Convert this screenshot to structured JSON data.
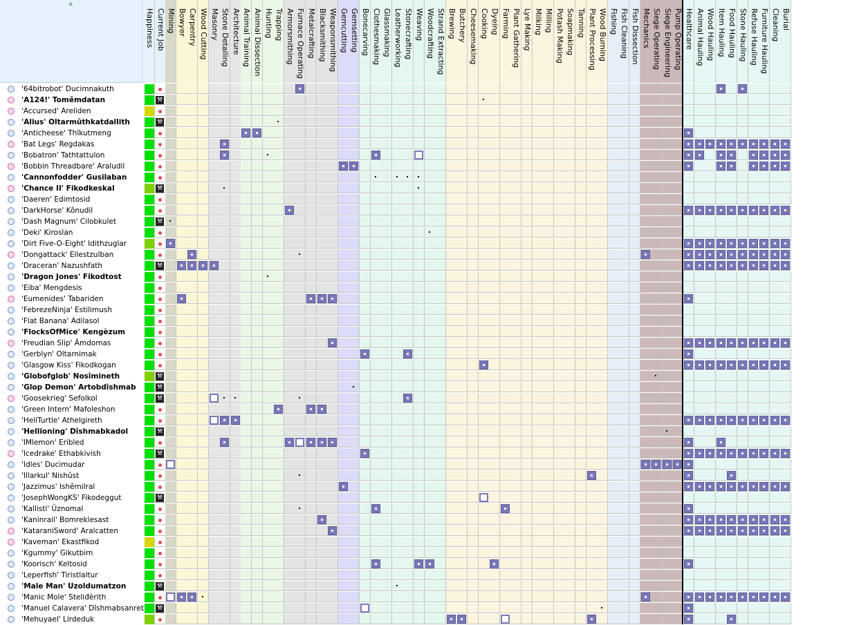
{
  "window": {
    "title": ""
  },
  "columns": [
    {
      "label": "Happiness",
      "group": "info",
      "color": "#ffffff"
    },
    {
      "label": "Current Job",
      "group": "info",
      "color": "#ffffff"
    },
    {
      "label": "Mining",
      "group": "mining",
      "color": "#d8d8c8"
    },
    {
      "label": "Bowyer",
      "group": "wood",
      "color": "#fbf6d6"
    },
    {
      "label": "Carpentry",
      "group": "wood",
      "color": "#fbf6d6"
    },
    {
      "label": "Wood Cutting",
      "group": "wood",
      "color": "#fbf6d6"
    },
    {
      "label": "Masonry",
      "group": "stone",
      "color": "#e6e6e6"
    },
    {
      "label": "Stone Detailing",
      "group": "stone",
      "color": "#e6e6e6"
    },
    {
      "label": "Architecture",
      "group": "stone",
      "color": "#e6e6e6"
    },
    {
      "label": "Animal Training",
      "group": "hunt",
      "color": "#eaf7e6"
    },
    {
      "label": "Animal Dissection",
      "group": "hunt",
      "color": "#eaf7e6"
    },
    {
      "label": "Hunting",
      "group": "hunt",
      "color": "#eaf7e6"
    },
    {
      "label": "Trapping",
      "group": "hunt",
      "color": "#eaf7e6"
    },
    {
      "label": "Armorsmithing",
      "group": "metal",
      "color": "#e4e4e4"
    },
    {
      "label": "Furnace Operating",
      "group": "metal",
      "color": "#e4e4e4"
    },
    {
      "label": "Metalcrafting",
      "group": "metal",
      "color": "#e4e4e4"
    },
    {
      "label": "Blacksmithing",
      "group": "metal",
      "color": "#e4e4e4"
    },
    {
      "label": "Weaponsmithing",
      "group": "metal",
      "color": "#e4e4e4"
    },
    {
      "label": "Gemcutting",
      "group": "gem",
      "color": "#dcdcf8"
    },
    {
      "label": "Gemsetting",
      "group": "gem",
      "color": "#dcdcf8"
    },
    {
      "label": "Bonecarving",
      "group": "craft",
      "color": "#e4f7ef"
    },
    {
      "label": "Clothesmaking",
      "group": "craft",
      "color": "#e4f7ef"
    },
    {
      "label": "Glassmaking",
      "group": "craft",
      "color": "#e4f7ef"
    },
    {
      "label": "Leatherworking",
      "group": "craft",
      "color": "#e4f7ef"
    },
    {
      "label": "Stonecrafting",
      "group": "craft",
      "color": "#e4f7ef"
    },
    {
      "label": "Weaving",
      "group": "craft",
      "color": "#e4f7ef"
    },
    {
      "label": "Woodcrafting",
      "group": "craft",
      "color": "#e4f7ef"
    },
    {
      "label": "Strand Extracting",
      "group": "craft",
      "color": "#e4f7ef"
    },
    {
      "label": "Brewing",
      "group": "farm",
      "color": "#fbf4de"
    },
    {
      "label": "Butchery",
      "group": "farm",
      "color": "#fbf4de"
    },
    {
      "label": "Cheesemaking",
      "group": "farm",
      "color": "#fbf4de"
    },
    {
      "label": "Cooking",
      "group": "farm",
      "color": "#fbf4de"
    },
    {
      "label": "Dyeing",
      "group": "farm",
      "color": "#fbf4de"
    },
    {
      "label": "Farming",
      "group": "farm",
      "color": "#fbf4de"
    },
    {
      "label": "Plant Gathering",
      "group": "farm",
      "color": "#fbf4de"
    },
    {
      "label": "Lye Making",
      "group": "farm",
      "color": "#fbf4de"
    },
    {
      "label": "Milking",
      "group": "farm",
      "color": "#fbf4de"
    },
    {
      "label": "Milling",
      "group": "farm",
      "color": "#fbf4de"
    },
    {
      "label": "Potash Making",
      "group": "farm",
      "color": "#fbf4de"
    },
    {
      "label": "Soapmaking",
      "group": "farm",
      "color": "#fbf4de"
    },
    {
      "label": "Tanning",
      "group": "farm",
      "color": "#fbf4de"
    },
    {
      "label": "Plant Processing",
      "group": "farm",
      "color": "#fbf4de"
    },
    {
      "label": "Wood Burning",
      "group": "farm",
      "color": "#fbf4de"
    },
    {
      "label": "Fishing",
      "group": "fish",
      "color": "#e6eef8"
    },
    {
      "label": "Fish Cleaning",
      "group": "fish",
      "color": "#e6eef8"
    },
    {
      "label": "Fish Dissection",
      "group": "fish",
      "color": "#e6eef8"
    },
    {
      "label": "Mechanics",
      "group": "eng",
      "color": "#cbb9b9"
    },
    {
      "label": "Siege Operating",
      "group": "eng",
      "color": "#cbb9b9"
    },
    {
      "label": "Siege Engineering",
      "group": "eng",
      "color": "#cbb9b9"
    },
    {
      "label": "Pump Operating",
      "group": "eng",
      "color": "#cbb9b9"
    },
    {
      "label": "Healthcare",
      "group": "haul",
      "color": "#e4f7f4"
    },
    {
      "label": "Animal Hauling",
      "group": "haul",
      "color": "#e4f7f4"
    },
    {
      "label": "Wood Hauling",
      "group": "haul",
      "color": "#e4f7f4"
    },
    {
      "label": "Item Hauling",
      "group": "haul",
      "color": "#e4f7f4"
    },
    {
      "label": "Food Hauling",
      "group": "haul",
      "color": "#e4f7f4"
    },
    {
      "label": "Stone Hauling",
      "group": "haul",
      "color": "#e4f7f4"
    },
    {
      "label": "Refuse Hauling",
      "group": "haul",
      "color": "#e4f7f4"
    },
    {
      "label": "Furniture Hauling",
      "group": "haul",
      "color": "#e4f7f4"
    },
    {
      "label": "Cleaning",
      "group": "haul",
      "color": "#e4f7f4"
    },
    {
      "label": "Burial",
      "group": "haul",
      "color": "#e4f7f4"
    }
  ],
  "dwarves": [
    {
      "name": "'64bitrobot' Ducimnakuth",
      "sex": "m",
      "bold": false,
      "happy": "#00e000",
      "job": "dot",
      "skills": {
        "14": "full",
        "53": "full",
        "55": "full"
      }
    },
    {
      "name": "'A124!' Tomêmdatan",
      "sex": "f",
      "bold": true,
      "happy": "#00e000",
      "job": "icon",
      "skills": {
        "31": "dot"
      }
    },
    {
      "name": "'Accursed' Areliden",
      "sex": "f",
      "bold": false,
      "happy": "#d6d600",
      "job": "dot",
      "skills": {}
    },
    {
      "name": "'Alius' Oltarmûthkatdallith",
      "sex": "m",
      "bold": true,
      "happy": "#00e000",
      "job": "icon",
      "skills": {
        "12": "dot"
      }
    },
    {
      "name": "'Anticheese' Thîkutmeng",
      "sex": "m",
      "bold": false,
      "happy": "#00e000",
      "job": "dot",
      "skills": {
        "9": "full",
        "10": "full",
        "50": "full"
      }
    },
    {
      "name": "'Bat Legs' Regdakas",
      "sex": "f",
      "bold": false,
      "happy": "#00e000",
      "job": "dot",
      "skills": {
        "7": "full",
        "50": "full",
        "51": "full",
        "52": "full",
        "53": "full",
        "54": "full",
        "55": "full",
        "56": "full",
        "57": "full",
        "58": "full",
        "59": "full"
      }
    },
    {
      "name": "'Bobatron' Tathtattulon",
      "sex": "m",
      "bold": false,
      "happy": "#00e000",
      "job": "dot",
      "skills": {
        "7": "full",
        "11": "dot",
        "21": "full",
        "25": "box",
        "50": "full",
        "51": "full",
        "53": "full",
        "54": "full",
        "56": "full",
        "57": "full",
        "58": "full",
        "59": "full"
      }
    },
    {
      "name": "'Bobbin Threadbare' Araludil",
      "sex": "f",
      "bold": false,
      "happy": "#00e000",
      "job": "dot",
      "skills": {
        "18": "full",
        "19": "full",
        "50": "full",
        "53": "full",
        "54": "full",
        "56": "full",
        "57": "full",
        "58": "full",
        "59": "full"
      }
    },
    {
      "name": "'Cannonfodder' Gusilaban",
      "sex": "m",
      "bold": true,
      "happy": "#00e000",
      "job": "dot",
      "skills": {
        "21": "dot",
        "23": "dot",
        "24": "dot",
        "25": "dot"
      }
    },
    {
      "name": "'Chance II' Fikodkeskal",
      "sex": "f",
      "bold": true,
      "happy": "#80d000",
      "job": "icon",
      "skills": {
        "7": "dot",
        "25": "dot"
      }
    },
    {
      "name": "'Daeren' Edimtosid",
      "sex": "m",
      "bold": false,
      "happy": "#00e000",
      "job": "dot",
      "skills": {}
    },
    {
      "name": "'DarkHorse' Kônudil",
      "sex": "m",
      "bold": false,
      "happy": "#00e000",
      "job": "dot",
      "skills": {
        "13": "full",
        "50": "full",
        "51": "full",
        "52": "full",
        "53": "full",
        "54": "full",
        "55": "full",
        "56": "full",
        "57": "full",
        "58": "full",
        "59": "full"
      }
    },
    {
      "name": "'Dash Magnum' Cilobkulet",
      "sex": "m",
      "bold": false,
      "happy": "#00e000",
      "job": "icon",
      "skills": {
        "2": "dot"
      }
    },
    {
      "name": "'Deki' Kiroslan",
      "sex": "m",
      "bold": false,
      "happy": "#00e000",
      "job": "dot",
      "skills": {
        "26": "dot"
      }
    },
    {
      "name": "'Dirt Five-O-Eight' Idithzuglar",
      "sex": "m",
      "bold": false,
      "happy": "#80d000",
      "job": "dot",
      "skills": {
        "2": "full",
        "50": "full",
        "51": "full",
        "52": "full",
        "53": "full",
        "54": "full",
        "55": "full",
        "56": "full",
        "57": "full",
        "58": "full",
        "59": "full"
      }
    },
    {
      "name": "'Dongattack' Ellestzulban",
      "sex": "f",
      "bold": false,
      "happy": "#00e000",
      "job": "dot",
      "skills": {
        "4": "full",
        "14": "dot",
        "46": "full",
        "50": "full",
        "51": "full",
        "52": "full",
        "53": "full",
        "54": "full",
        "55": "full",
        "56": "full",
        "57": "full",
        "58": "full",
        "59": "full"
      }
    },
    {
      "name": "'Draceran' Nazushfath",
      "sex": "m",
      "bold": false,
      "happy": "#00e000",
      "job": "icon",
      "skills": {
        "3": "full",
        "4": "full",
        "5": "full",
        "6": "full",
        "50": "full",
        "51": "full",
        "52": "full",
        "53": "full",
        "54": "full",
        "55": "full",
        "56": "full",
        "57": "full",
        "58": "full",
        "59": "full"
      }
    },
    {
      "name": "'Dragon Jones' Fikodtost",
      "sex": "m",
      "bold": true,
      "happy": "#00e000",
      "job": "dot",
      "skills": {
        "11": "dot"
      }
    },
    {
      "name": "'Eiba' Mengdesis",
      "sex": "m",
      "bold": false,
      "happy": "#00e000",
      "job": "dot",
      "skills": {}
    },
    {
      "name": "'Eumenides' Tabariden",
      "sex": "f",
      "bold": false,
      "happy": "#00e000",
      "job": "dot",
      "skills": {
        "3": "full",
        "15": "full",
        "16": "full",
        "17": "full",
        "50": "full"
      }
    },
    {
      "name": "'FebrezeNinja' Estilimush",
      "sex": "m",
      "bold": false,
      "happy": "#00e000",
      "job": "dot",
      "skills": {}
    },
    {
      "name": "'Flat Banana' Adilasol",
      "sex": "m",
      "bold": false,
      "happy": "#00e000",
      "job": "dot",
      "skills": {}
    },
    {
      "name": "'FlocksOfMice' Kengèzum",
      "sex": "m",
      "bold": true,
      "happy": "#00e000",
      "job": "dot",
      "skills": {}
    },
    {
      "name": "'Freudian Slip' Âmdomas",
      "sex": "f",
      "bold": false,
      "happy": "#00e000",
      "job": "dot",
      "skills": {
        "17": "full",
        "50": "full",
        "51": "full",
        "52": "full",
        "53": "full",
        "54": "full",
        "55": "full",
        "56": "full",
        "57": "full",
        "58": "full",
        "59": "full"
      }
    },
    {
      "name": "'Gerblyn' Oltarnimak",
      "sex": "m",
      "bold": false,
      "happy": "#00e000",
      "job": "dot",
      "skills": {
        "20": "full",
        "24": "full",
        "50": "full"
      }
    },
    {
      "name": "'Glasgow Kiss' Fikodkogan",
      "sex": "m",
      "bold": false,
      "happy": "#00e000",
      "job": "dot",
      "skills": {
        "31": "full",
        "50": "full",
        "51": "full",
        "52": "full",
        "53": "full",
        "54": "full",
        "55": "full",
        "56": "full",
        "57": "full",
        "58": "full",
        "59": "full"
      }
    },
    {
      "name": "'Globofglob' Nosîmineth",
      "sex": "m",
      "bold": true,
      "happy": "#80d000",
      "job": "icon",
      "skills": {
        "47": "dot"
      }
    },
    {
      "name": "'Glop Demon' Artobdîshmab",
      "sex": "m",
      "bold": true,
      "happy": "#00e000",
      "job": "icon",
      "skills": {
        "19": "dot"
      }
    },
    {
      "name": "'Goosekrieg' Sefolkol",
      "sex": "f",
      "bold": false,
      "happy": "#00e000",
      "job": "icon",
      "skills": {
        "6": "box",
        "7": "dot",
        "8": "dot",
        "14": "dot",
        "24": "full"
      }
    },
    {
      "name": "'Green Intern' Mafoleshon",
      "sex": "m",
      "bold": false,
      "happy": "#00e000",
      "job": "dot",
      "skills": {
        "12": "full",
        "15": "full",
        "16": "full"
      }
    },
    {
      "name": "'HeliTurtle' Athelgireth",
      "sex": "m",
      "bold": false,
      "happy": "#00e000",
      "job": "dot",
      "skills": {
        "6": "box",
        "7": "full",
        "8": "full",
        "50": "full",
        "51": "full",
        "52": "full",
        "53": "full",
        "54": "full",
        "55": "full",
        "56": "full",
        "57": "full",
        "58": "full",
        "59": "full"
      }
    },
    {
      "name": "'Hellioning' Dîshmabkadol",
      "sex": "m",
      "bold": true,
      "happy": "#00e000",
      "job": "icon",
      "skills": {
        "48": "dot"
      }
    },
    {
      "name": "'IMlemon' Eribled",
      "sex": "m",
      "bold": false,
      "happy": "#00e000",
      "job": "dot",
      "skills": {
        "7": "full",
        "13": "full",
        "14": "box",
        "15": "full",
        "16": "full",
        "17": "full",
        "50": "full",
        "53": "full"
      }
    },
    {
      "name": "'Icedrake' Ethabkivish",
      "sex": "f",
      "bold": false,
      "happy": "#00e000",
      "job": "icon",
      "skills": {
        "20": "full",
        "50": "full",
        "51": "full",
        "52": "full",
        "53": "full",
        "54": "full",
        "55": "full",
        "56": "full",
        "57": "full",
        "58": "full",
        "59": "full"
      }
    },
    {
      "name": "'Idles' Ducimudar",
      "sex": "m",
      "bold": false,
      "happy": "#00e000",
      "job": "dot",
      "skills": {
        "2": "box",
        "46": "full",
        "47": "full",
        "48": "full",
        "49": "full",
        "50": "full"
      }
    },
    {
      "name": "'Illarkul' Nishûst",
      "sex": "m",
      "bold": false,
      "happy": "#00e000",
      "job": "dot",
      "skills": {
        "14": "dot",
        "41": "full",
        "50": "full",
        "54": "full"
      }
    },
    {
      "name": "'Jazzimus' Ishêmilral",
      "sex": "m",
      "bold": false,
      "happy": "#00e000",
      "job": "dot",
      "skills": {
        "18": "full",
        "50": "full",
        "51": "full",
        "52": "full",
        "53": "full",
        "54": "full",
        "55": "full",
        "56": "full",
        "57": "full",
        "58": "full",
        "59": "full"
      }
    },
    {
      "name": "'JosephWongKS' Fikodeggut",
      "sex": "m",
      "bold": false,
      "happy": "#00e000",
      "job": "icon",
      "skills": {
        "31": "box"
      }
    },
    {
      "name": "'Kallisti' Ûznomal",
      "sex": "m",
      "bold": false,
      "happy": "#00e000",
      "job": "dot",
      "skills": {
        "14": "dot",
        "21": "full",
        "33": "full",
        "50": "full"
      }
    },
    {
      "name": "'Kaninrail' Bomreklesast",
      "sex": "m",
      "bold": false,
      "happy": "#00e000",
      "job": "dot",
      "skills": {
        "16": "full",
        "50": "full",
        "51": "full",
        "52": "full",
        "53": "full",
        "54": "full",
        "55": "full",
        "56": "full",
        "57": "full",
        "58": "full",
        "59": "full"
      }
    },
    {
      "name": "'KataraniSword' Aralcatten",
      "sex": "f",
      "bold": false,
      "happy": "#00e000",
      "job": "dot",
      "skills": {
        "17": "full",
        "50": "full",
        "51": "full",
        "52": "full",
        "53": "full",
        "54": "full",
        "55": "full",
        "56": "full",
        "57": "full",
        "58": "full",
        "59": "full"
      }
    },
    {
      "name": "'Kaveman' Ekastfikod",
      "sex": "f",
      "bold": false,
      "happy": "#d6d600",
      "job": "dot",
      "skills": {}
    },
    {
      "name": "'Kgummy' Gikutbim",
      "sex": "m",
      "bold": false,
      "happy": "#00e000",
      "job": "dot",
      "skills": {}
    },
    {
      "name": "'Koorisch' Keltosid",
      "sex": "m",
      "bold": false,
      "happy": "#00e000",
      "job": "dot",
      "skills": {
        "21": "full",
        "25": "full",
        "26": "full",
        "32": "full",
        "50": "full"
      }
    },
    {
      "name": "'Leperfish' Tiristlaltur",
      "sex": "m",
      "bold": false,
      "happy": "#00e000",
      "job": "dot",
      "skills": {}
    },
    {
      "name": "'Male Man' Uzoldumatzon",
      "sex": "m",
      "bold": true,
      "happy": "#00e000",
      "job": "icon",
      "skills": {
        "23": "dot"
      }
    },
    {
      "name": "'Manic Mole' Steliđèrith",
      "sex": "m",
      "bold": false,
      "happy": "#00e000",
      "job": "dot",
      "skills": {
        "2": "box",
        "3": "full",
        "4": "full",
        "5": "dot",
        "46": "full",
        "50": "full",
        "51": "full",
        "52": "full",
        "53": "full",
        "54": "full",
        "55": "full",
        "56": "full",
        "57": "full",
        "58": "full",
        "59": "full"
      }
    },
    {
      "name": "'Manuel Calavera' Dîshmabsanreb",
      "sex": "m",
      "bold": false,
      "happy": "#00e000",
      "job": "icon",
      "skills": {
        "20": "box",
        "42": "dot",
        "50": "full"
      }
    },
    {
      "name": "'Mehuyael' Lirdeduk",
      "sex": "m",
      "bold": false,
      "happy": "#80d000",
      "job": "dot",
      "skills": {
        "28": "full",
        "29": "full",
        "33": "box",
        "41": "full",
        "50": "full",
        "54": "full"
      }
    }
  ]
}
